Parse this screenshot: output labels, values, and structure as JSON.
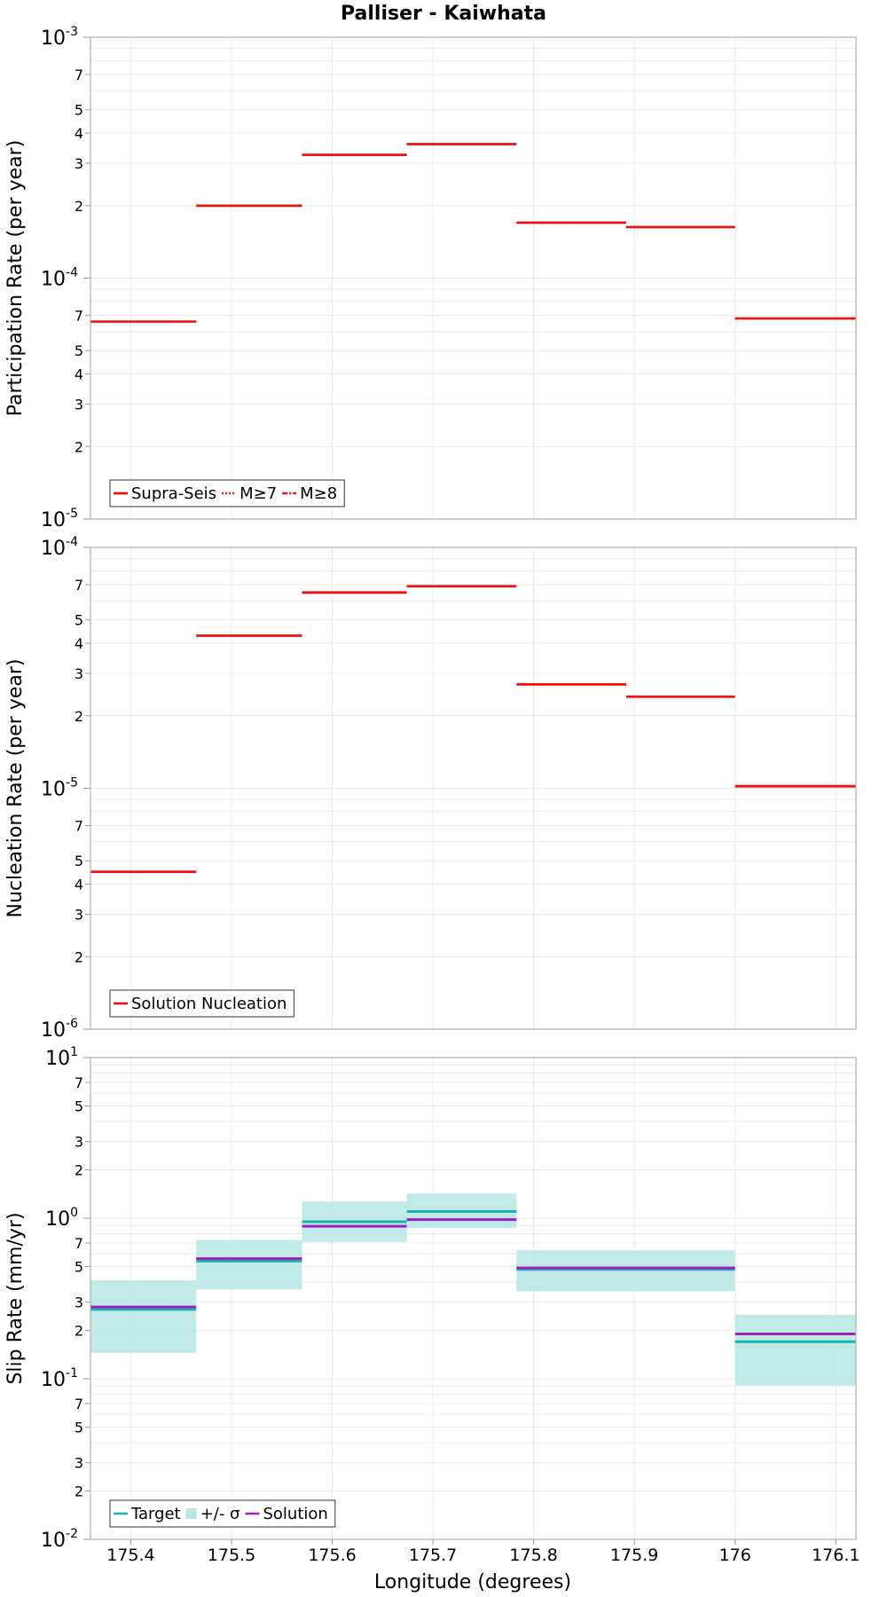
{
  "title": "Palliser - Kaiwhata",
  "x_axis": {
    "label": "Longitude (degrees)",
    "range": [
      175.36,
      176.12
    ],
    "ticks": [
      175.4,
      175.5,
      175.6,
      175.7,
      175.8,
      175.9,
      176.0,
      176.1
    ],
    "tick_labels": [
      "175.4",
      "175.5",
      "175.6",
      "175.7",
      "175.8",
      "175.9",
      "176",
      "176.1"
    ]
  },
  "colors": {
    "red": "#ee1111",
    "target": "#17b5ad",
    "band": "#b8e8e6",
    "solution": "#a21cbf",
    "grid": "#ececec",
    "frame": "#b0b0b0"
  },
  "chart_data": [
    {
      "type": "line",
      "panel": "participation",
      "ylabel": "Participation Rate (per year)",
      "y_scale": "log",
      "ylim": [
        1e-05,
        0.001
      ],
      "decade_labels": [
        {
          "base": "10",
          "exp": "-3"
        },
        {
          "base": "10",
          "exp": "-4"
        },
        {
          "base": "10",
          "exp": "-5"
        }
      ],
      "minor_tick_labels": [
        "2",
        "3",
        "4",
        "5",
        "7"
      ],
      "legend": {
        "location": "bottom-left",
        "entries": [
          {
            "label": "Supra-Seis",
            "style": "solid"
          },
          {
            "label": "M≥7",
            "style": "dotted"
          },
          {
            "label": "M≥8",
            "style": "dashdot"
          }
        ]
      },
      "series": [
        {
          "name": "Supra-Seis",
          "color": "#ee1111",
          "segments": [
            {
              "x0": 175.36,
              "x1": 175.465,
              "y": 6.6e-05
            },
            {
              "x0": 175.465,
              "x1": 175.57,
              "y": 0.0002
            },
            {
              "x0": 175.57,
              "x1": 175.674,
              "y": 0.000325
            },
            {
              "x0": 175.674,
              "x1": 175.783,
              "y": 0.00036
            },
            {
              "x0": 175.783,
              "x1": 175.892,
              "y": 0.00017
            },
            {
              "x0": 175.892,
              "x1": 176.0,
              "y": 0.000163
            },
            {
              "x0": 176.0,
              "x1": 176.12,
              "y": 6.8e-05
            }
          ]
        },
        {
          "name": "M≥7",
          "color": "#ee1111",
          "segments": [
            {
              "x0": 175.36,
              "x1": 175.465,
              "y": 6.6e-05
            },
            {
              "x0": 175.465,
              "x1": 175.57,
              "y": 0.0002
            },
            {
              "x0": 175.57,
              "x1": 175.674,
              "y": 0.000325
            },
            {
              "x0": 175.674,
              "x1": 175.783,
              "y": 0.00036
            },
            {
              "x0": 175.783,
              "x1": 175.892,
              "y": 0.00017
            },
            {
              "x0": 175.892,
              "x1": 176.0,
              "y": 0.000163
            },
            {
              "x0": 176.0,
              "x1": 176.12,
              "y": 6.8e-05
            }
          ]
        }
      ]
    },
    {
      "type": "line",
      "panel": "nucleation",
      "ylabel": "Nucleation Rate (per year)",
      "y_scale": "log",
      "ylim": [
        1e-06,
        0.0001
      ],
      "decade_labels": [
        {
          "base": "10",
          "exp": "-4"
        },
        {
          "base": "10",
          "exp": "-5"
        },
        {
          "base": "10",
          "exp": "-6"
        }
      ],
      "minor_tick_labels": [
        "2",
        "3",
        "4",
        "5",
        "7"
      ],
      "legend": {
        "location": "bottom-left",
        "entries": [
          {
            "label": "Solution Nucleation",
            "style": "solid"
          }
        ]
      },
      "series": [
        {
          "name": "Solution Nucleation",
          "color": "#ee1111",
          "segments": [
            {
              "x0": 175.36,
              "x1": 175.465,
              "y": 4.5e-06
            },
            {
              "x0": 175.465,
              "x1": 175.57,
              "y": 4.3e-05
            },
            {
              "x0": 175.57,
              "x1": 175.674,
              "y": 6.5e-05
            },
            {
              "x0": 175.674,
              "x1": 175.783,
              "y": 6.9e-05
            },
            {
              "x0": 175.783,
              "x1": 175.892,
              "y": 2.7e-05
            },
            {
              "x0": 175.892,
              "x1": 176.0,
              "y": 2.4e-05
            },
            {
              "x0": 176.0,
              "x1": 176.12,
              "y": 1.02e-05
            }
          ]
        }
      ]
    },
    {
      "type": "area",
      "panel": "slip",
      "ylabel": "Slip Rate (mm/yr)",
      "y_scale": "log",
      "ylim": [
        0.01,
        10
      ],
      "decade_labels": [
        {
          "base": "10",
          "exp": "1"
        },
        {
          "base": "10",
          "exp": "0"
        },
        {
          "base": "10",
          "exp": "-1"
        },
        {
          "base": "10",
          "exp": "-2"
        }
      ],
      "minor_tick_labels": [
        "2",
        "3",
        "5",
        "7"
      ],
      "legend": {
        "location": "bottom-left",
        "entries": [
          {
            "label": "Target",
            "style": "solid"
          },
          {
            "label": "+/- σ",
            "style": "band"
          },
          {
            "label": "Solution",
            "style": "solid"
          }
        ]
      },
      "series": [
        {
          "name": "+/- σ",
          "color": "#b8e8e6",
          "bands": [
            {
              "x0": 175.36,
              "x1": 175.465,
              "low": 0.145,
              "high": 0.41
            },
            {
              "x0": 175.465,
              "x1": 175.57,
              "low": 0.36,
              "high": 0.73
            },
            {
              "x0": 175.57,
              "x1": 175.674,
              "low": 0.71,
              "high": 1.27
            },
            {
              "x0": 175.674,
              "x1": 175.783,
              "low": 0.87,
              "high": 1.42
            },
            {
              "x0": 175.783,
              "x1": 176.0,
              "low": 0.35,
              "high": 0.63
            },
            {
              "x0": 176.0,
              "x1": 176.12,
              "low": 0.091,
              "high": 0.25
            }
          ]
        },
        {
          "name": "Target",
          "color": "#17b5ad",
          "segments": [
            {
              "x0": 175.36,
              "x1": 175.465,
              "y": 0.27
            },
            {
              "x0": 175.465,
              "x1": 175.57,
              "y": 0.54
            },
            {
              "x0": 175.57,
              "x1": 175.674,
              "y": 0.95
            },
            {
              "x0": 175.674,
              "x1": 175.783,
              "y": 1.1
            },
            {
              "x0": 175.783,
              "x1": 176.0,
              "y": 0.48
            },
            {
              "x0": 176.0,
              "x1": 176.12,
              "y": 0.17
            }
          ]
        },
        {
          "name": "Solution",
          "color": "#a21cbf",
          "segments": [
            {
              "x0": 175.36,
              "x1": 175.465,
              "y": 0.28
            },
            {
              "x0": 175.465,
              "x1": 175.57,
              "y": 0.56
            },
            {
              "x0": 175.57,
              "x1": 175.674,
              "y": 0.89
            },
            {
              "x0": 175.674,
              "x1": 175.783,
              "y": 0.98
            },
            {
              "x0": 175.783,
              "x1": 176.0,
              "y": 0.49
            },
            {
              "x0": 176.0,
              "x1": 176.12,
              "y": 0.19
            }
          ]
        }
      ]
    }
  ]
}
